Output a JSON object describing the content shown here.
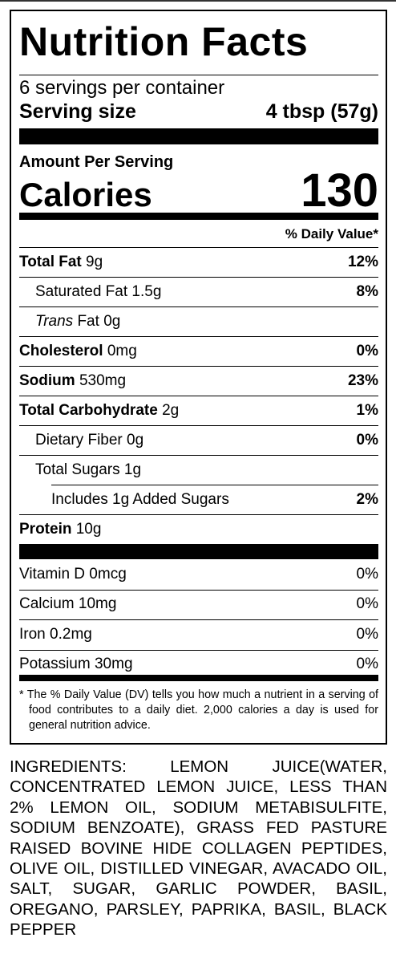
{
  "title": "Nutrition Facts",
  "servings": "6 servings per container",
  "serving_size": {
    "label": "Serving size",
    "value": "4 tbsp (57g)"
  },
  "amount_per_serving": "Amount Per Serving",
  "calories": {
    "label": "Calories",
    "value": 130
  },
  "dv_header": "% Daily Value*",
  "nutrients": [
    {
      "name": "Total Fat",
      "amount": "9g",
      "dv": "12%",
      "bold": true,
      "indent": 0
    },
    {
      "name": "Saturated Fat",
      "amount": "1.5g",
      "dv": "8%",
      "bold": false,
      "indent": 1
    },
    {
      "italic": "Trans",
      "name": "Fat",
      "amount": "0g",
      "dv": null,
      "bold": false,
      "indent": 1
    },
    {
      "name": "Cholesterol",
      "amount": "0mg",
      "dv": "0%",
      "bold": true,
      "indent": 0
    },
    {
      "name": "Sodium",
      "amount": "530mg",
      "dv": "23%",
      "bold": true,
      "indent": 0
    },
    {
      "name": "Total Carbohydrate",
      "amount": "2g",
      "dv": "1%",
      "bold": true,
      "indent": 0
    },
    {
      "name": "Dietary Fiber",
      "amount": "0g",
      "dv": "0%",
      "bold": false,
      "indent": 1
    },
    {
      "name": "Total Sugars",
      "amount": "1g",
      "dv": null,
      "bold": false,
      "indent": 1
    },
    {
      "name": "Includes 1g Added Sugars",
      "amount": null,
      "dv": "2%",
      "bold": false,
      "indent": 2
    },
    {
      "name": "Protein",
      "amount": "10g",
      "dv": null,
      "bold": true,
      "indent": 0
    }
  ],
  "vitamins": [
    {
      "name": "Vitamin D",
      "amount": "0mcg",
      "dv": "0%"
    },
    {
      "name": "Calcium",
      "amount": "10mg",
      "dv": "0%"
    },
    {
      "name": "Iron",
      "amount": "0.2mg",
      "dv": "0%"
    },
    {
      "name": "Potassium",
      "amount": "30mg",
      "dv": "0%"
    }
  ],
  "footnote": "* The % Daily Value (DV) tells you how much a nutrient in a serving of food contributes to a daily diet. 2,000 calories a day is used for general nutrition advice.",
  "ingredients": "INGREDIENTS: LEMON JUICE(WATER, CONCENTRATED LEMON JUICE, LESS THAN 2% LEMON OIL, SODIUM METABISULFITE, SODIUM BENZOATE), GRASS FED PASTURE RAISED BOVINE HIDE COLLAGEN PEPTIDES, OLIVE OIL, DISTILLED VINEGAR, AVACADO OIL, SALT, SUGAR, GARLIC POWDER, BASIL, OREGANO, PARSLEY, PAPRIKA, BASIL, BLACK PEPPER"
}
